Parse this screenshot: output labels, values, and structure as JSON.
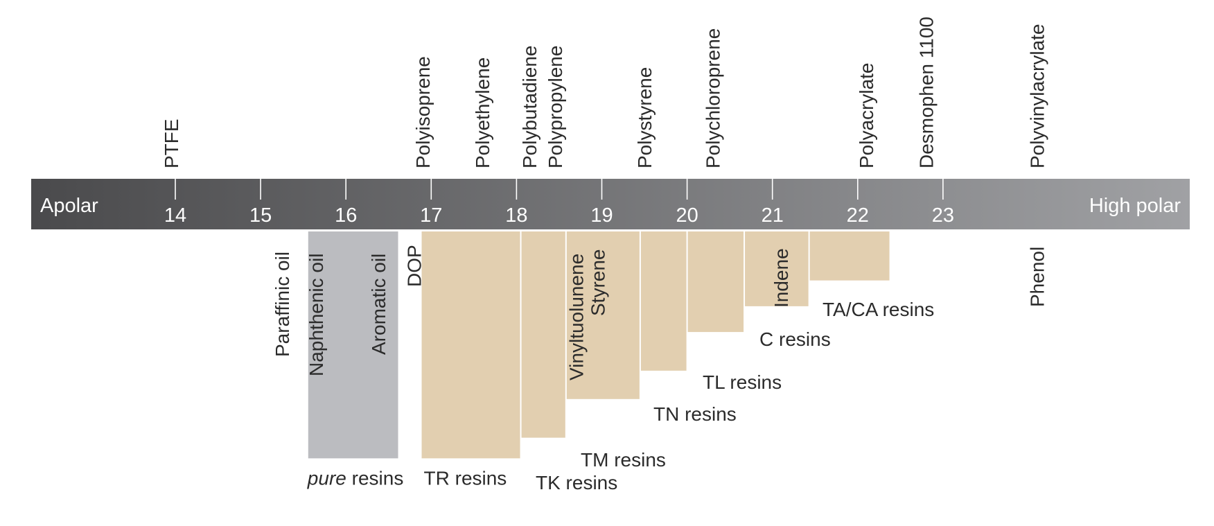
{
  "scale": {
    "left_label": "Apolar",
    "right_label": "High polar",
    "ticks": [
      14,
      15,
      16,
      17,
      18,
      19,
      20,
      21,
      22,
      23
    ],
    "colors": {
      "bar_start": "#4a4a4c",
      "bar_end": "#a0a1a4",
      "tick": "#ffffff"
    }
  },
  "polymers": [
    {
      "label": "PTFE",
      "value": 13.95
    },
    {
      "label": "Polyisoprene",
      "value": 16.9
    },
    {
      "label": "Polyethylene",
      "value": 17.6
    },
    {
      "label": "Polybutadiene",
      "value": 18.15
    },
    {
      "label": "Polypropylene",
      "value": 18.45
    },
    {
      "label": "Polystyrene",
      "value": 19.5
    },
    {
      "label": "Polychloroprene",
      "value": 20.3
    },
    {
      "label": "Polyacrylate",
      "value": 22.1
    },
    {
      "label": "Desmophen 1100",
      "value": 22.8
    },
    {
      "label": "Polyvinylacrylate",
      "value": 24.1
    }
  ],
  "solvents": [
    {
      "label": "Paraffinic oil",
      "value": 15.25
    },
    {
      "label": "Naphthenic oil",
      "value": 15.65
    },
    {
      "label": "Aromatic oil",
      "value": 16.38
    },
    {
      "label": "DOP",
      "value": 16.8
    },
    {
      "label": "Vinyltuolunene",
      "value": 18.7
    },
    {
      "label": "Styrene",
      "value": 18.95
    },
    {
      "label": "Indene",
      "value": 21.1
    },
    {
      "label": "Phenol",
      "value": 24.1
    }
  ],
  "resins": [
    {
      "id": "pure",
      "label_italic": "pure",
      "label": " resins",
      "from": 15.55,
      "to": 16.62,
      "depth": 0.88,
      "color": "#bbbcc0"
    },
    {
      "id": "tr",
      "label": "TR resins",
      "from": 16.88,
      "to": 18.05,
      "depth": 0.88,
      "color": "#e2cfb0"
    },
    {
      "id": "tk",
      "label": "TK resins",
      "from": 18.05,
      "to": 18.58,
      "depth": 0.8,
      "color": "#e2cfb0"
    },
    {
      "id": "tm",
      "label": "TM resins",
      "from": 18.58,
      "to": 19.45,
      "depth": 0.65,
      "color": "#e2cfb0"
    },
    {
      "id": "tn",
      "label": "TN resins",
      "from": 19.45,
      "to": 20.0,
      "depth": 0.54,
      "color": "#e2cfb0"
    },
    {
      "id": "tl",
      "label": "TL resins",
      "from": 20.0,
      "to": 20.67,
      "depth": 0.39,
      "color": "#e2cfb0"
    },
    {
      "id": "c",
      "label": "C resins",
      "from": 20.67,
      "to": 21.43,
      "depth": 0.29,
      "color": "#e2cfb0"
    },
    {
      "id": "taca",
      "label": "TA/CA resins",
      "from": 21.43,
      "to": 22.38,
      "depth": 0.19,
      "color": "#e2cfb0"
    }
  ]
}
